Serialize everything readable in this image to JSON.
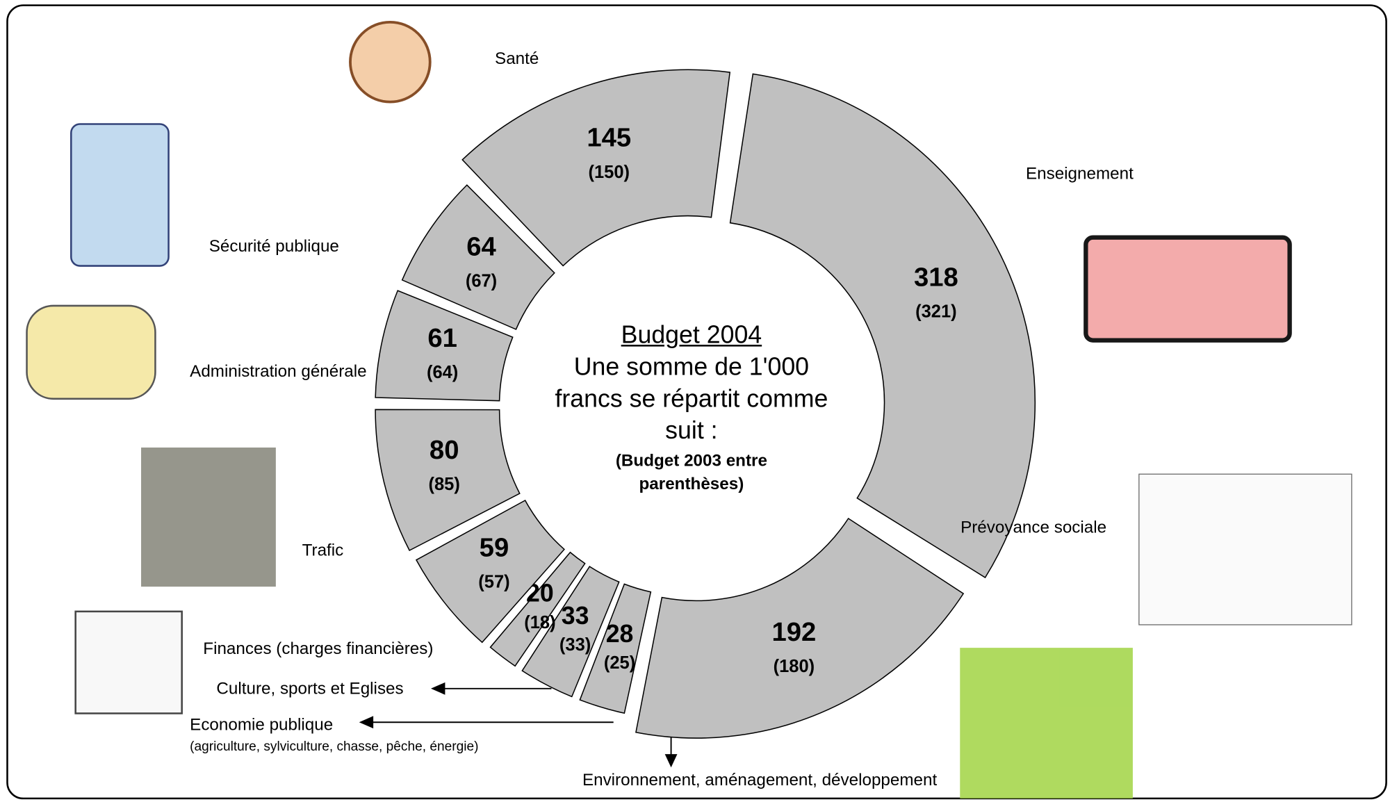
{
  "chart_data": {
    "type": "donut",
    "title": "Budget 2004",
    "subtitle": "Une somme de 1'000 francs se répartit comme suit :",
    "note": "(Budget 2003 entre parenthèses)",
    "categories": [
      "Enseignement",
      "Prévoyance sociale",
      "Environnement, aménagement, développement",
      "Economie publique",
      "Culture, sports et Eglises",
      "Finances (charges financières)",
      "Trafic",
      "Administration générale",
      "Sécurité publique",
      "Santé"
    ],
    "category_details": [
      null,
      null,
      null,
      "(agriculture, sylviculture, chasse, pêche, énergie)",
      null,
      null,
      null,
      null,
      null,
      null
    ],
    "series": [
      {
        "name": "Budget 2004",
        "color": "#c0c0c0",
        "values": [
          318,
          192,
          28,
          33,
          20,
          59,
          80,
          61,
          64,
          145
        ]
      },
      {
        "name": "Budget 2003",
        "values": [
          321,
          180,
          25,
          33,
          18,
          57,
          85,
          64,
          67,
          150
        ],
        "value_labels": [
          "(321)",
          "(180)",
          "(25)",
          "(33)",
          "(18)",
          "(57)",
          "(85)",
          "(64)",
          "(67)",
          "(150)"
        ]
      }
    ]
  }
}
